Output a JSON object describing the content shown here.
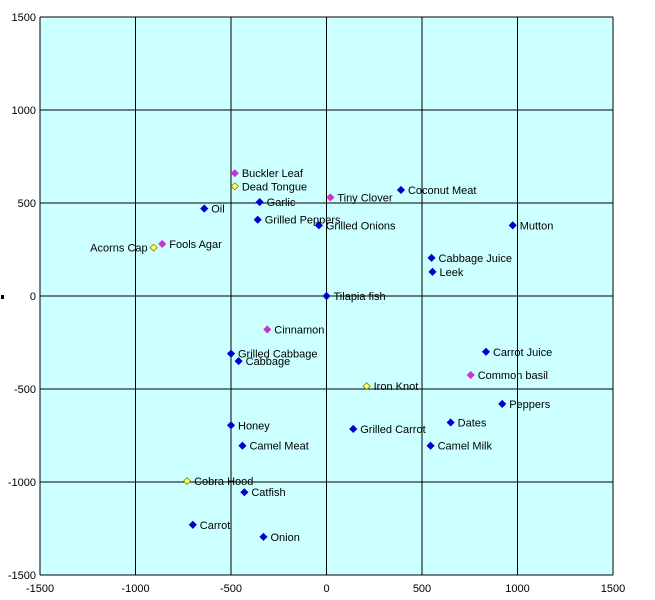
{
  "chart_data": {
    "type": "scatter",
    "title": "",
    "xlabel": "",
    "ylabel": "",
    "xlim": [
      -1500,
      1500
    ],
    "ylim": [
      -1500,
      1500
    ],
    "x_ticks": [
      -1500,
      -1000,
      -500,
      0,
      500,
      1000,
      1500
    ],
    "y_ticks": [
      -1500,
      -1000,
      -500,
      0,
      500,
      1000,
      1500
    ],
    "grid": true,
    "legend": "none",
    "colors": {
      "plot_background": "#ccffff",
      "grid": "#000000",
      "navy": "#0000cc",
      "magenta": "#cc33cc",
      "yellow": "#ffff66",
      "yellow_outline": "#808000"
    },
    "points": [
      {
        "label": "Buckler Leaf",
        "x": -480,
        "y": 660,
        "color": "magenta"
      },
      {
        "label": "Dead Tongue",
        "x": -480,
        "y": 590,
        "color": "yellow"
      },
      {
        "label": "Garlic",
        "x": -350,
        "y": 505,
        "color": "navy"
      },
      {
        "label": "Oil",
        "x": -640,
        "y": 470,
        "color": "navy"
      },
      {
        "label": "Grilled Peppers",
        "x": -360,
        "y": 410,
        "color": "navy"
      },
      {
        "label": "Grilled Onions",
        "x": -40,
        "y": 380,
        "color": "navy"
      },
      {
        "label": "Tiny Clover",
        "x": 20,
        "y": 530,
        "color": "magenta"
      },
      {
        "label": "Coconut Meat",
        "x": 390,
        "y": 570,
        "color": "navy"
      },
      {
        "label": "Mutton",
        "x": 975,
        "y": 380,
        "color": "navy"
      },
      {
        "label": "Fools Agar",
        "x": -860,
        "y": 280,
        "color": "magenta"
      },
      {
        "label": "Acorns Cap",
        "x": -905,
        "y": 260,
        "color": "yellow"
      },
      {
        "label": "Cabbage Juice",
        "x": 550,
        "y": 205,
        "color": "navy"
      },
      {
        "label": "Leek",
        "x": 555,
        "y": 130,
        "color": "navy"
      },
      {
        "label": "Tilapia fish",
        "x": 0,
        "y": 0,
        "color": "navy"
      },
      {
        "label": "Cinnamon",
        "x": -310,
        "y": -180,
        "color": "magenta"
      },
      {
        "label": "Grilled Cabbage",
        "x": -500,
        "y": -310,
        "color": "navy"
      },
      {
        "label": "Cabbage",
        "x": -460,
        "y": -350,
        "color": "navy"
      },
      {
        "label": "Carrot Juice",
        "x": 835,
        "y": -300,
        "color": "navy"
      },
      {
        "label": "Common basil",
        "x": 755,
        "y": -425,
        "color": "magenta"
      },
      {
        "label": "Iron Knot",
        "x": 210,
        "y": -485,
        "color": "yellow"
      },
      {
        "label": "Peppers",
        "x": 920,
        "y": -580,
        "color": "navy"
      },
      {
        "label": "Honey",
        "x": -500,
        "y": -695,
        "color": "navy"
      },
      {
        "label": "Grilled Carrot",
        "x": 140,
        "y": -715,
        "color": "navy"
      },
      {
        "label": "Dates",
        "x": 650,
        "y": -680,
        "color": "navy"
      },
      {
        "label": "Camel Meat",
        "x": -440,
        "y": -805,
        "color": "navy"
      },
      {
        "label": "Camel Milk",
        "x": 545,
        "y": -805,
        "color": "navy"
      },
      {
        "label": "Cobra Hood",
        "x": -730,
        "y": -995,
        "color": "yellow"
      },
      {
        "label": "Catfish",
        "x": -430,
        "y": -1055,
        "color": "navy"
      },
      {
        "label": "Carrot",
        "x": -700,
        "y": -1230,
        "color": "navy"
      },
      {
        "label": "Onion",
        "x": -330,
        "y": -1295,
        "color": "navy"
      }
    ]
  }
}
